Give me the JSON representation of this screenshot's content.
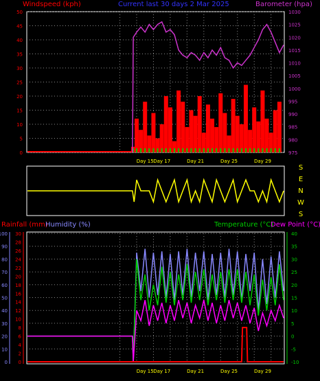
{
  "colors": {
    "background": "#000000",
    "frame": "#ffffff",
    "grid": "#8a8a8a",
    "windspeed": "#ff0000",
    "windspeed_avg": "#00cc00",
    "barometer": "#cc33cc",
    "direction": "#ffff00",
    "rainfall": "#ff0000",
    "humidity": "#8888ff",
    "temperature": "#00cc00",
    "dewpoint": "#ff00ff",
    "day_label": "#ffff00",
    "title": "#3333ff"
  },
  "top_chart": {
    "title": "Current last 30 days 2 Mar 2025",
    "left_label": "Windspeed (kph)",
    "right_label": "Barometer (hpa)",
    "left_ticks": [
      "0",
      "5",
      "10",
      "15",
      "20",
      "25",
      "30",
      "35",
      "40",
      "45",
      "50"
    ],
    "right_ticks": [
      "975",
      "980",
      "985",
      "990",
      "995",
      "1000",
      "1005",
      "1010",
      "1015",
      "1020",
      "1025",
      "1030"
    ]
  },
  "direction_chart": {
    "labels": [
      "S",
      "E",
      "N",
      "W",
      "S"
    ]
  },
  "bottom_chart": {
    "rain_label": "Rainfall (mm)",
    "humidity_label": "Humidity (%)",
    "temp_label": "Temperature (°C)",
    "dew_label": "Dew Point (°C)",
    "humidity_ticks": [
      "0",
      "10",
      "20",
      "30",
      "40",
      "50",
      "60",
      "70",
      "80",
      "90",
      "100"
    ],
    "rain_ticks": [
      "0",
      "2",
      "4",
      "6",
      "8",
      "10",
      "12",
      "14",
      "16",
      "18",
      "20",
      "22",
      "24",
      "26",
      "28",
      "30"
    ],
    "temp_ticks": [
      "-10",
      "-5",
      "0",
      "5",
      "10",
      "15",
      "20",
      "25",
      "30",
      "35",
      "40"
    ]
  },
  "day_labels": [
    "Day 15",
    "Day 17",
    "Day 21",
    "Day 25",
    "Day 29"
  ],
  "chart_data": [
    {
      "type": "line",
      "title": "Current last 30 days 2 Mar 2025",
      "xlabel": "",
      "ylabel": "Windspeed (kph)",
      "y2label": "Barometer (hpa)",
      "ylim": [
        0,
        50
      ],
      "y2lim": [
        975,
        1030
      ],
      "x_tick_labels": [
        "Day 15",
        "Day 17",
        "Day 21",
        "Day 25",
        "Day 29"
      ],
      "grid": true,
      "series": [
        {
          "name": "Barometer (hpa)",
          "axis": "right",
          "x": [
            13.5,
            13.6,
            14,
            14.5,
            15,
            15.5,
            16,
            16.5,
            17,
            17.5,
            18,
            18.5,
            19,
            19.5,
            20,
            20.5,
            21,
            21.5,
            22,
            22.5,
            23,
            23.5,
            24,
            24.5,
            25,
            25.5,
            26,
            26.5,
            27,
            27.5,
            28,
            28.5,
            29,
            29.5,
            30,
            30.5,
            31,
            31.5
          ],
          "values": [
            975,
            1020,
            1022,
            1024,
            1022,
            1025,
            1023,
            1025,
            1026,
            1022,
            1023,
            1021,
            1015,
            1013,
            1012,
            1014,
            1013,
            1011,
            1014,
            1012,
            1015,
            1013,
            1016,
            1012,
            1011,
            1008,
            1010,
            1009,
            1011,
            1013,
            1016,
            1019,
            1023,
            1025,
            1022,
            1018,
            1014,
            1017
          ]
        },
        {
          "name": "Windspeed (kph)",
          "axis": "left",
          "x": [
            13.6,
            14,
            14.5,
            15,
            15.5,
            16,
            16.5,
            17,
            17.5,
            18,
            18.5,
            19,
            19.5,
            20,
            20.5,
            21,
            21.5,
            22,
            22.5,
            23,
            23.5,
            24,
            24.5,
            25,
            25.5,
            26,
            26.5,
            27,
            27.5,
            28,
            28.5,
            29,
            29.5,
            30,
            30.5,
            31
          ],
          "values": [
            2,
            12,
            8,
            18,
            6,
            14,
            5,
            10,
            20,
            16,
            4,
            22,
            18,
            9,
            15,
            13,
            20,
            7,
            17,
            12,
            9,
            21,
            14,
            6,
            19,
            13,
            10,
            24,
            8,
            16,
            11,
            22,
            12,
            7,
            15,
            18
          ]
        }
      ]
    },
    {
      "type": "line",
      "title": "",
      "ylabel": "Direction",
      "categories": [
        "S",
        "E",
        "N",
        "W",
        "S"
      ],
      "x_tick_labels": [],
      "series": [
        {
          "name": "",
          "x": [
            1,
            13.5,
            13.7,
            14,
            14.5,
            15,
            15.5,
            16,
            16.5,
            17,
            17.5,
            18,
            18.5,
            19,
            19.5,
            20,
            20.5,
            21,
            21.5,
            22,
            22.5,
            23,
            23.5,
            24,
            24.5,
            25,
            25.5,
            26,
            26.5,
            27,
            27.5,
            28,
            28.5,
            29,
            29.5,
            30,
            30.5,
            31,
            31.5
          ],
          "values": [
            2,
            2,
            3,
            1,
            2,
            2,
            2,
            3,
            1,
            2,
            3,
            2,
            1,
            3,
            2,
            1,
            3,
            2,
            3,
            1,
            2,
            3,
            1,
            2,
            3,
            2,
            1,
            3,
            2,
            1,
            2,
            2,
            3,
            2,
            3,
            1,
            2,
            3,
            2
          ]
        }
      ]
    },
    {
      "type": "line",
      "title": "",
      "ylabel": "Humidity (%)",
      "y2label": "Temperature (°C)",
      "ylim": [
        0,
        100
      ],
      "y2lim": [
        -10,
        40
      ],
      "x_tick_labels": [
        "Day 15",
        "Day 17",
        "Day 21",
        "Day 25",
        "Day 29"
      ],
      "grid": true,
      "series": [
        {
          "name": "Humidity (%)",
          "axis": "left",
          "x": [
            1,
            13.5,
            13.6,
            14,
            14.5,
            15,
            15.5,
            16,
            16.5,
            17,
            17.5,
            18,
            18.5,
            19,
            19.5,
            20,
            20.5,
            21,
            21.5,
            22,
            22.5,
            23,
            23.5,
            24,
            24.5,
            25,
            25.5,
            26,
            26.5,
            27,
            27.5,
            28,
            28.5,
            29,
            29.5,
            30,
            30.5,
            31,
            31.5
          ],
          "values": [
            20,
            20,
            0,
            85,
            55,
            88,
            50,
            85,
            52,
            86,
            50,
            84,
            48,
            86,
            52,
            88,
            50,
            85,
            55,
            86,
            48,
            84,
            52,
            85,
            50,
            88,
            52,
            86,
            48,
            84,
            55,
            85,
            40,
            80,
            45,
            82,
            50,
            86,
            55
          ]
        },
        {
          "name": "Temperature (°C)",
          "axis": "right",
          "x": [
            1,
            13.5,
            13.6,
            14,
            14.5,
            15,
            15.5,
            16,
            16.5,
            17,
            17.5,
            18,
            18.5,
            19,
            19.5,
            20,
            20.5,
            21,
            21.5,
            22,
            22.5,
            23,
            23.5,
            24,
            24.5,
            25,
            25.5,
            26,
            26.5,
            27,
            27.5,
            28,
            28.5,
            29,
            29.5,
            30,
            30.5,
            31,
            31.5
          ],
          "values": [
            0,
            0,
            -10,
            30,
            14,
            24,
            10,
            20,
            12,
            27,
            13,
            25,
            12,
            24,
            14,
            28,
            13,
            25,
            14,
            26,
            12,
            24,
            14,
            25,
            13,
            26,
            14,
            26,
            13,
            25,
            12,
            24,
            8,
            22,
            10,
            23,
            12,
            28,
            14
          ]
        },
        {
          "name": "Dew Point (°C)",
          "axis": "right",
          "x": [
            1,
            13.5,
            13.6,
            14,
            14.5,
            15,
            15.5,
            16,
            16.5,
            17,
            17.5,
            18,
            18.5,
            19,
            19.5,
            20,
            20.5,
            21,
            21.5,
            22,
            22.5,
            23,
            23.5,
            24,
            24.5,
            25,
            25.5,
            26,
            26.5,
            27,
            27.5,
            28,
            28.5,
            29,
            29.5,
            30,
            30.5,
            31,
            31.5
          ],
          "values": [
            0,
            0,
            -10,
            10,
            6,
            14,
            4,
            12,
            6,
            13,
            5,
            12,
            6,
            14,
            7,
            13,
            5,
            12,
            7,
            14,
            6,
            13,
            5,
            12,
            6,
            14,
            7,
            13,
            6,
            12,
            5,
            11,
            2,
            9,
            4,
            10,
            6,
            12,
            7
          ]
        },
        {
          "name": "Rainfall (mm)",
          "axis": "left2",
          "x": [
            1,
            26.5,
            26.6,
            27.1,
            27.2,
            31.5
          ],
          "values": [
            0,
            0,
            8,
            8,
            0,
            0
          ]
        }
      ]
    }
  ]
}
